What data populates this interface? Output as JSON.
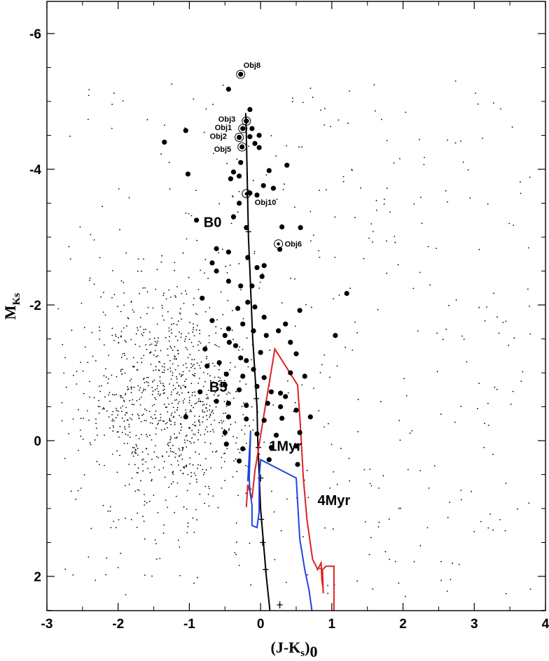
{
  "chart_data": {
    "type": "scatter",
    "title": "",
    "xlabel": {
      "main": "(J-K",
      "sub1": "s",
      "close": ")",
      "sub2": "0"
    },
    "ylabel": {
      "main": "M",
      "sub": "Ks"
    },
    "xlim": [
      -3,
      4
    ],
    "ylim": [
      2.5,
      -6.5
    ],
    "y_inverted": true,
    "x_ticks": [
      -3,
      -2,
      -1,
      0,
      1,
      2,
      3,
      4
    ],
    "x_tick_labels": [
      "-3",
      "-2",
      "-1",
      "0",
      "1",
      "2",
      "3",
      "4"
    ],
    "y_ticks": [
      -6,
      -4,
      -2,
      0,
      2
    ],
    "y_tick_labels": [
      "-6",
      "-4",
      "-2",
      "0",
      "2"
    ],
    "grid": false,
    "series": [
      {
        "name": "",
        "kind": "large-dots",
        "color": "#000000",
        "points": [
          [
            -0.28,
            -5.4
          ],
          [
            -0.45,
            -5.18
          ],
          [
            -0.2,
            -4.71
          ],
          [
            -0.25,
            -4.6
          ],
          [
            -0.3,
            -4.47
          ],
          [
            -0.26,
            -4.33
          ],
          [
            -0.28,
            -4.1
          ],
          [
            -0.15,
            -4.88
          ],
          [
            -0.15,
            -4.48
          ],
          [
            -0.08,
            -4.38
          ],
          [
            -0.02,
            -4.32
          ],
          [
            -1.05,
            -4.57
          ],
          [
            -1.35,
            -4.4
          ],
          [
            -0.12,
            -4.6
          ],
          [
            -0.02,
            -4.5
          ],
          [
            -1.02,
            -3.93
          ],
          [
            -0.38,
            -3.96
          ],
          [
            0.37,
            -4.06
          ],
          [
            -0.42,
            -3.86
          ],
          [
            -0.3,
            -3.9
          ],
          [
            -0.15,
            -3.65
          ],
          [
            -0.05,
            -3.62
          ],
          [
            -0.3,
            -3.5
          ],
          [
            0.04,
            -3.76
          ],
          [
            0.18,
            -3.72
          ],
          [
            -0.9,
            -3.25
          ],
          [
            -0.2,
            -3.14
          ],
          [
            0.3,
            -3.15
          ],
          [
            0.56,
            -3.14
          ],
          [
            -0.62,
            -2.83
          ],
          [
            -0.45,
            -2.78
          ],
          [
            -0.68,
            -2.62
          ],
          [
            -0.18,
            -2.7
          ],
          [
            0.05,
            -2.58
          ],
          [
            0.27,
            -2.82
          ],
          [
            -0.62,
            -2.5
          ],
          [
            -0.05,
            -2.55
          ],
          [
            0.02,
            -2.42
          ],
          [
            -0.45,
            -2.35
          ],
          [
            -0.28,
            -2.28
          ],
          [
            1.21,
            -2.17
          ],
          [
            -0.82,
            -2.1
          ],
          [
            -0.18,
            -2.04
          ],
          [
            -0.32,
            -1.95
          ],
          [
            -0.08,
            -1.97
          ],
          [
            0.55,
            -1.92
          ],
          [
            -0.68,
            -1.77
          ],
          [
            -0.45,
            -1.65
          ],
          [
            -0.25,
            -1.72
          ],
          [
            0.05,
            -1.82
          ],
          [
            0.35,
            -1.72
          ],
          [
            -0.5,
            -1.55
          ],
          [
            -0.44,
            -1.45
          ],
          [
            -0.35,
            -1.4
          ],
          [
            -0.1,
            -1.62
          ],
          [
            0.08,
            -1.55
          ],
          [
            0.25,
            -1.62
          ],
          [
            1.05,
            -1.55
          ],
          [
            -0.78,
            -1.35
          ],
          [
            -0.28,
            -1.22
          ],
          [
            -0.2,
            -1.18
          ],
          [
            0.0,
            -1.3
          ],
          [
            0.5,
            -1.28
          ],
          [
            -0.75,
            -1.1
          ],
          [
            -0.48,
            -0.98
          ],
          [
            -0.1,
            -1.05
          ],
          [
            0.05,
            -0.93
          ],
          [
            0.42,
            -1.0
          ],
          [
            -0.5,
            -0.82
          ],
          [
            -0.3,
            -0.75
          ],
          [
            -0.05,
            -0.8
          ],
          [
            0.15,
            -0.72
          ],
          [
            0.35,
            -0.65
          ],
          [
            -0.62,
            -0.58
          ],
          [
            -0.45,
            -0.55
          ],
          [
            -0.2,
            -0.52
          ],
          [
            0.1,
            -0.55
          ],
          [
            0.28,
            -0.5
          ],
          [
            0.5,
            -0.45
          ],
          [
            -1.05,
            -0.35
          ],
          [
            -0.45,
            -0.35
          ],
          [
            -0.2,
            -0.32
          ],
          [
            0.05,
            -0.3
          ],
          [
            0.3,
            -0.33
          ],
          [
            0.7,
            -0.35
          ],
          [
            -0.5,
            -0.12
          ],
          [
            -0.05,
            -0.1
          ],
          [
            0.22,
            -0.08
          ],
          [
            0.55,
            -0.12
          ],
          [
            -0.48,
            0.05
          ],
          [
            -0.25,
            0.12
          ],
          [
            0.15,
            0.1
          ],
          [
            0.5,
            0.08
          ],
          [
            -0.3,
            0.3
          ],
          [
            0.12,
            0.28
          ],
          [
            0.52,
            0.35
          ],
          [
            -0.58,
            -1.15
          ],
          [
            0.62,
            -0.95
          ],
          [
            -0.85,
            -0.72
          ],
          [
            0.42,
            -1.45
          ],
          [
            -0.12,
            -2.28
          ],
          [
            -0.38,
            -3.3
          ],
          [
            0.12,
            -3.98
          ],
          [
            -0.25,
            -0.95
          ],
          [
            0.28,
            -0.7
          ]
        ]
      },
      {
        "name": "",
        "kind": "small-dots",
        "color": "#000000",
        "n_points": 1300,
        "field_center": [
          -1.3,
          -0.6
        ],
        "field_spread": [
          0.8,
          1.2
        ]
      },
      {
        "name": "",
        "kind": "track",
        "color": "#000000",
        "points": [
          [
            -0.21,
            -4.83
          ],
          [
            -0.2,
            -4.5
          ],
          [
            -0.19,
            -4.0
          ],
          [
            -0.18,
            -3.5
          ],
          [
            -0.17,
            -3.0
          ],
          [
            -0.15,
            -2.5
          ],
          [
            -0.13,
            -2.0
          ],
          [
            -0.11,
            -1.5
          ],
          [
            -0.08,
            -1.0
          ],
          [
            -0.05,
            -0.5
          ],
          [
            -0.04,
            0.0
          ],
          [
            -0.02,
            0.5
          ],
          [
            0.0,
            1.0
          ],
          [
            0.04,
            1.5
          ],
          [
            0.08,
            2.0
          ],
          [
            0.13,
            2.5
          ]
        ],
        "markers": [
          [
            -0.2,
            -4.72
          ],
          [
            -0.17,
            -3.08
          ],
          [
            -0.06,
            -0.62
          ],
          [
            -0.03,
            0.1
          ],
          [
            0.0,
            0.55
          ],
          [
            0.01,
            1.16
          ],
          [
            0.03,
            1.5
          ],
          [
            0.07,
            1.9
          ],
          [
            0.27,
            2.42
          ]
        ]
      },
      {
        "name": "",
        "kind": "track",
        "color": "#dd2222",
        "points": [
          [
            -0.2,
            0.98
          ],
          [
            -0.18,
            0.65
          ],
          [
            -0.12,
            0.85
          ],
          [
            -0.08,
            0.45
          ],
          [
            0.05,
            -0.4
          ],
          [
            0.2,
            -1.35
          ],
          [
            0.52,
            -0.82
          ],
          [
            0.56,
            -0.2
          ],
          [
            0.6,
            0.55
          ],
          [
            0.65,
            1.15
          ],
          [
            0.73,
            1.75
          ],
          [
            0.78,
            1.85
          ],
          [
            0.8,
            1.9
          ],
          [
            0.85,
            1.8
          ],
          [
            0.86,
            2.05
          ],
          [
            0.88,
            2.2
          ],
          [
            0.88,
            2.25
          ],
          [
            0.87,
            1.9
          ],
          [
            0.92,
            1.85
          ],
          [
            1.03,
            1.85
          ],
          [
            1.03,
            2.5
          ]
        ]
      },
      {
        "name": "",
        "kind": "track",
        "color": "#2244dd",
        "points": [
          [
            -0.18,
            0.6
          ],
          [
            -0.14,
            -0.15
          ],
          [
            -0.15,
            0.25
          ],
          [
            -0.16,
            0.55
          ],
          [
            -0.15,
            0.75
          ],
          [
            -0.12,
            0.95
          ],
          [
            -0.12,
            1.25
          ],
          [
            -0.05,
            1.28
          ],
          [
            -0.02,
            1.05
          ],
          [
            -0.02,
            0.55
          ],
          [
            0.0,
            0.3
          ],
          [
            0.0,
            0.28
          ],
          [
            0.5,
            0.55
          ],
          [
            0.55,
            1.45
          ],
          [
            0.62,
            1.9
          ],
          [
            0.68,
            2.2
          ],
          [
            0.72,
            2.5
          ]
        ]
      }
    ],
    "circled_objects": [
      {
        "label": "Obj8",
        "x": -0.28,
        "y": -5.4
      },
      {
        "label": "Obj3",
        "x": -0.2,
        "y": -4.71
      },
      {
        "label": "Obj1",
        "x": -0.25,
        "y": -4.6
      },
      {
        "label": "Obj2",
        "x": -0.3,
        "y": -4.47
      },
      {
        "label": "Obj5",
        "x": -0.26,
        "y": -4.33
      },
      {
        "label": "Obj10",
        "x": -0.2,
        "y": -3.64
      },
      {
        "label": "Obj6",
        "x": 0.25,
        "y": -2.9
      }
    ],
    "annotations": [
      {
        "text": "B0",
        "x": -0.8,
        "y": -3.15,
        "size": "large"
      },
      {
        "text": "B5",
        "x": -0.72,
        "y": -0.72,
        "size": "large"
      },
      {
        "text": "1Myr",
        "x": 0.12,
        "y": 0.15,
        "size": "large"
      },
      {
        "text": "4Myr",
        "x": 0.8,
        "y": 0.95,
        "size": "large"
      }
    ]
  }
}
